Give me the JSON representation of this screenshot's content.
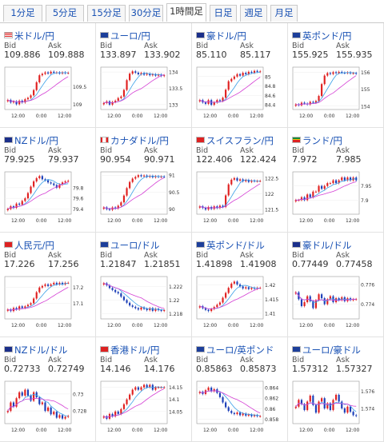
{
  "tabs": [
    "1分足",
    "5分足",
    "15分足",
    "30分足",
    "1時間足",
    "日足",
    "週足",
    "月足"
  ],
  "active_tab": "1時間足",
  "colors": {
    "link": "#1a52b4",
    "up": "#e02020",
    "down": "#1c3fb8",
    "ma_short": "#3aa0e8",
    "ma_long": "#d43fd4"
  },
  "pairs": [
    {
      "name": "米ドル/円",
      "flag": "us",
      "bid": "109.886",
      "ask": "109.888",
      "yticks": [
        "109.5",
        "109"
      ],
      "ylim": [
        108.85,
        110.05
      ],
      "xticks": [
        "12:00",
        "0:00",
        "12:00"
      ],
      "close": [
        109.12,
        109.05,
        109.08,
        109.0,
        109.1,
        109.05,
        109.14,
        109.18,
        109.25,
        109.4,
        109.62,
        109.82,
        109.86,
        109.9,
        109.87,
        109.92,
        109.89,
        109.9,
        109.87,
        109.9,
        109.88,
        109.89
      ]
    },
    {
      "name": "ユーロ/円",
      "flag": "eu",
      "bid": "133.897",
      "ask": "133.902",
      "yticks": [
        "134",
        "133.5",
        "133"
      ],
      "ylim": [
        132.85,
        134.15
      ],
      "xticks": [
        "12:00",
        "0:00",
        "12:00"
      ],
      "close": [
        133.05,
        133.1,
        133.0,
        133.08,
        133.12,
        133.2,
        133.25,
        133.45,
        133.75,
        133.95,
        134.02,
        133.98,
        133.93,
        133.97,
        133.92,
        133.95,
        133.9,
        133.93,
        133.89,
        133.92,
        133.88,
        133.9
      ]
    },
    {
      "name": "豪ドル/円",
      "flag": "au",
      "bid": "85.110",
      "ask": "85.117",
      "yticks": [
        "85",
        "84.8",
        "84.6",
        "84.4"
      ],
      "ylim": [
        84.3,
        85.2
      ],
      "xticks": [
        "12:00",
        "0:00",
        "12:00"
      ],
      "close": [
        84.5,
        84.45,
        84.42,
        84.5,
        84.4,
        84.45,
        84.5,
        84.48,
        84.55,
        84.72,
        84.9,
        84.95,
        85.0,
        85.05,
        85.02,
        85.08,
        85.05,
        85.1,
        85.08,
        85.12,
        85.1,
        85.11
      ]
    },
    {
      "name": "英ポンド/円",
      "flag": "uk",
      "bid": "155.925",
      "ask": "155.935",
      "yticks": [
        "156",
        "155",
        "154"
      ],
      "ylim": [
        153.8,
        156.3
      ],
      "xticks": [
        "12:00",
        "0:00",
        "12:00"
      ],
      "close": [
        154.1,
        154.05,
        154.2,
        154.15,
        154.1,
        154.25,
        154.2,
        154.3,
        154.6,
        155.3,
        155.8,
        155.95,
        155.9,
        156.0,
        155.95,
        156.02,
        155.97,
        155.95,
        155.99,
        155.93,
        155.95,
        155.92
      ]
    },
    {
      "name": "NZドル/円",
      "flag": "nz",
      "bid": "79.925",
      "ask": "79.937",
      "yticks": [
        "79.8",
        "79.6",
        "79.4"
      ],
      "ylim": [
        79.3,
        80.1
      ],
      "xticks": [
        "12:00",
        "0:00",
        "12:00"
      ],
      "close": [
        79.4,
        79.45,
        79.42,
        79.5,
        79.48,
        79.55,
        79.6,
        79.7,
        79.82,
        79.92,
        79.98,
        80.02,
        79.96,
        79.94,
        79.9,
        79.88,
        79.85,
        79.8,
        79.86,
        79.9,
        79.92,
        79.93
      ]
    },
    {
      "name": "カナダドル/円",
      "flag": "ca",
      "bid": "90.954",
      "ask": "90.971",
      "yticks": [
        "91",
        "90.5",
        "90"
      ],
      "ylim": [
        89.85,
        91.1
      ],
      "xticks": [
        "12:00",
        "0:00",
        "12:00"
      ],
      "close": [
        90.05,
        90.0,
        89.98,
        90.05,
        90.02,
        90.1,
        90.2,
        90.4,
        90.62,
        90.8,
        90.9,
        90.95,
        91.0,
        90.97,
        90.99,
        90.95,
        90.98,
        90.94,
        90.97,
        90.95,
        90.96,
        90.95
      ]
    },
    {
      "name": "スイスフラン/円",
      "flag": "ch",
      "bid": "122.406",
      "ask": "122.424",
      "yticks": [
        "122.5",
        "122",
        "121.5"
      ],
      "ylim": [
        121.35,
        122.7
      ],
      "xticks": [
        "12:00",
        "0:00",
        "12:00"
      ],
      "close": [
        121.6,
        121.55,
        121.5,
        121.58,
        121.52,
        121.6,
        121.55,
        121.62,
        121.58,
        121.95,
        122.3,
        122.45,
        122.5,
        122.42,
        122.46,
        122.4,
        122.44,
        122.38,
        122.42,
        122.4,
        122.41,
        122.41
      ]
    },
    {
      "name": "ランド/円",
      "flag": "za",
      "bid": "7.972",
      "ask": "7.985",
      "yticks": [
        "7.95",
        "7.9"
      ],
      "ylim": [
        7.85,
        8.0
      ],
      "xticks": [
        "12:00",
        "0:00",
        "12:00"
      ],
      "close": [
        7.9,
        7.9,
        7.91,
        7.9,
        7.92,
        7.91,
        7.93,
        7.93,
        7.95,
        7.94,
        7.95,
        7.96,
        7.96,
        7.97,
        7.96,
        7.97,
        7.98,
        7.97,
        7.98,
        7.97,
        7.98,
        7.97
      ]
    },
    {
      "name": "人民元/円",
      "flag": "cn",
      "bid": "17.226",
      "ask": "17.256",
      "yticks": [
        "17.2",
        "17.1"
      ],
      "ylim": [
        17.0,
        17.27
      ],
      "xticks": [
        "12:00",
        "0:00",
        "12:00"
      ],
      "close": [
        17.06,
        17.05,
        17.07,
        17.06,
        17.08,
        17.07,
        17.08,
        17.09,
        17.1,
        17.13,
        17.17,
        17.2,
        17.21,
        17.22,
        17.21,
        17.22,
        17.23,
        17.22,
        17.23,
        17.22,
        17.23,
        17.23
      ]
    },
    {
      "name": "ユーロ/ドル",
      "flag": "eu",
      "bid": "1.21847",
      "ask": "1.21851",
      "yticks": [
        "1.222",
        "1.22",
        "1.218"
      ],
      "ylim": [
        1.2172,
        1.2235
      ],
      "xticks": [
        "12:00",
        "0:00",
        "12:00"
      ],
      "close": [
        1.2225,
        1.2222,
        1.2218,
        1.2215,
        1.2212,
        1.221,
        1.2205,
        1.22,
        1.2196,
        1.2192,
        1.219,
        1.2188,
        1.2186,
        1.2189,
        1.2187,
        1.2185,
        1.2188,
        1.2184,
        1.2187,
        1.2185,
        1.2184,
        1.2185
      ]
    },
    {
      "name": "英ポンド/ドル",
      "flag": "uk",
      "bid": "1.41898",
      "ask": "1.41908",
      "yticks": [
        "1.42",
        "1.415",
        "1.41"
      ],
      "ylim": [
        1.408,
        1.423
      ],
      "xticks": [
        "12:00",
        "0:00",
        "12:00"
      ],
      "close": [
        1.4125,
        1.4118,
        1.4112,
        1.4108,
        1.4115,
        1.4122,
        1.413,
        1.4138,
        1.4155,
        1.4172,
        1.419,
        1.4205,
        1.4212,
        1.4202,
        1.4195,
        1.4188,
        1.4192,
        1.4186,
        1.419,
        1.4187,
        1.419,
        1.419
      ]
    },
    {
      "name": "豪ドル/ドル",
      "flag": "au",
      "bid": "0.77449",
      "ask": "0.77458",
      "yticks": [
        "0.776",
        "0.774"
      ],
      "ylim": [
        0.7725,
        0.7768
      ],
      "xticks": [
        "12:00",
        "0:00",
        "12:00"
      ],
      "close": [
        0.7752,
        0.7745,
        0.7738,
        0.7742,
        0.7748,
        0.7743,
        0.7736,
        0.7744,
        0.775,
        0.7746,
        0.774,
        0.7745,
        0.7748,
        0.7742,
        0.7746,
        0.7744,
        0.7747,
        0.7743,
        0.7746,
        0.7744,
        0.7745,
        0.7745
      ]
    },
    {
      "name": "NZドル/ドル",
      "flag": "nz",
      "bid": "0.72733",
      "ask": "0.72749",
      "yticks": [
        "0.73",
        "0.728"
      ],
      "ylim": [
        0.7265,
        0.7315
      ],
      "xticks": [
        "12:00",
        "0:00",
        "12:00"
      ],
      "close": [
        0.728,
        0.729,
        0.7285,
        0.7295,
        0.7302,
        0.7298,
        0.7305,
        0.7298,
        0.7292,
        0.7302,
        0.7296,
        0.7288,
        0.729,
        0.728,
        0.7284,
        0.7276,
        0.7279,
        0.7272,
        0.7275,
        0.7271,
        0.7273,
        0.7274
      ]
    },
    {
      "name": "香港ドル/円",
      "flag": "hk",
      "bid": "14.146",
      "ask": "14.176",
      "yticks": [
        "14.15",
        "14.1",
        "14.05"
      ],
      "ylim": [
        14.0,
        14.175
      ],
      "xticks": [
        "12:00",
        "0:00",
        "12:00"
      ],
      "close": [
        14.03,
        14.02,
        14.04,
        14.03,
        14.05,
        14.04,
        14.06,
        14.08,
        14.1,
        14.12,
        14.14,
        14.15,
        14.14,
        14.15,
        14.16,
        14.15,
        14.16,
        14.14,
        14.15,
        14.15,
        14.15,
        14.15
      ]
    },
    {
      "name": "ユーロ/英ポンド",
      "flag": "eu",
      "bid": "0.85863",
      "ask": "0.85873",
      "yticks": [
        "0.864",
        "0.862",
        "0.86",
        "0.858"
      ],
      "ylim": [
        0.8572,
        0.8652
      ],
      "xticks": [
        "12:00",
        "0:00",
        "12:00"
      ],
      "close": [
        0.8632,
        0.8628,
        0.8635,
        0.864,
        0.8633,
        0.8637,
        0.863,
        0.8622,
        0.8612,
        0.8603,
        0.8596,
        0.8592,
        0.859,
        0.8593,
        0.8588,
        0.8591,
        0.8587,
        0.8589,
        0.8586,
        0.8588,
        0.8586,
        0.8586
      ]
    },
    {
      "name": "ユーロ/豪ドル",
      "flag": "eu",
      "bid": "1.57312",
      "ask": "1.57327",
      "yticks": [
        "1.576",
        "1.574"
      ],
      "ylim": [
        1.5722,
        1.5772
      ],
      "xticks": [
        "12:00",
        "0:00",
        "12:00"
      ],
      "close": [
        1.5742,
        1.575,
        1.5745,
        1.5738,
        1.5748,
        1.5755,
        1.5744,
        1.5735,
        1.5748,
        1.5752,
        1.574,
        1.5746,
        1.5738,
        1.575,
        1.5756,
        1.5748,
        1.574,
        1.5735,
        1.5742,
        1.5736,
        1.5732,
        1.5731
      ]
    }
  ]
}
